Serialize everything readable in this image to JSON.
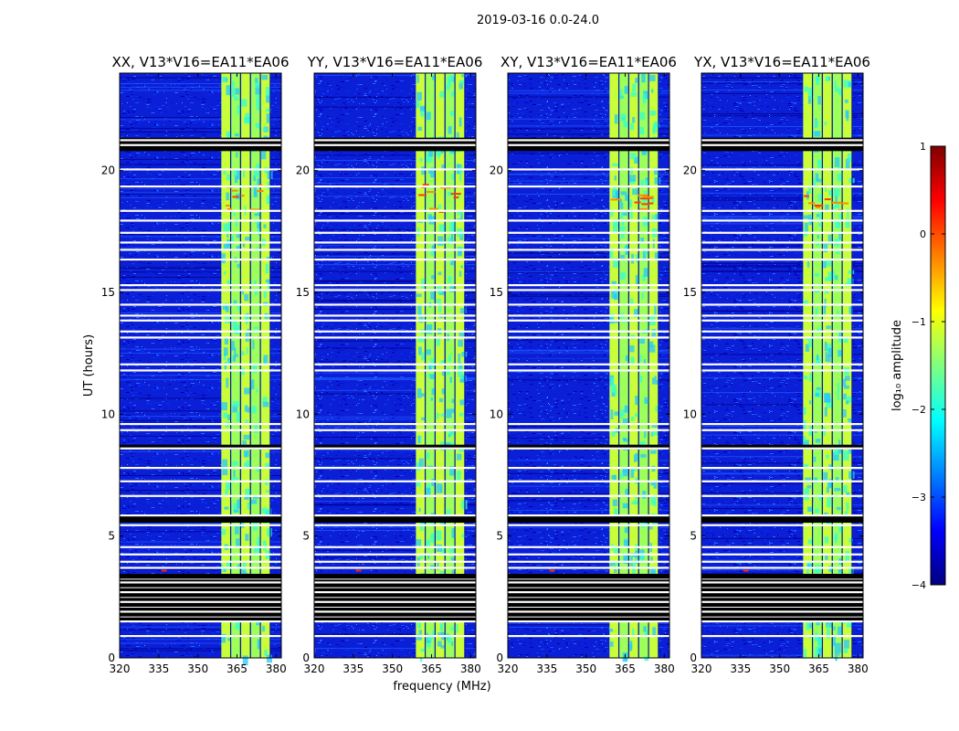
{
  "chart_data": {
    "type": "heatmap",
    "suptitle": "2019-03-16 0.0-24.0",
    "xlabel": "frequency (MHz)",
    "ylabel": "UT (hours)",
    "xlim": [
      320,
      382
    ],
    "ylim": [
      0,
      24
    ],
    "xticks": [
      320,
      335,
      350,
      365,
      380
    ],
    "xtick_labels": [
      "320",
      "335",
      "350",
      "365",
      "380"
    ],
    "yticks": [
      0,
      5,
      10,
      15,
      20
    ],
    "ytick_labels": [
      "0",
      "5",
      "10",
      "15",
      "20"
    ],
    "signal_band_mhz": [
      359,
      378
    ],
    "blank_rows_ut": [
      0.9,
      1.5,
      1.9,
      2.3,
      2.7,
      3.1,
      3.7,
      3.95,
      4.25,
      4.55,
      5.45,
      5.85,
      6.65,
      7.25,
      7.8,
      8.6,
      9.35,
      9.6,
      11.8,
      12.05,
      13.15,
      13.4,
      13.85,
      14.05,
      14.5,
      15.1,
      15.3,
      16.35,
      16.75,
      17.05,
      17.45,
      17.95,
      18.35,
      19.35,
      20.05,
      21.05,
      21.25
    ],
    "flagged_bands_ut": [
      [
        1.5,
        3.45
      ],
      [
        5.55,
        5.85
      ],
      [
        8.55,
        8.75
      ],
      [
        20.8,
        21.35
      ]
    ],
    "panels": [
      {
        "title": "XX, V13*V16=EA11*EA06",
        "polarization": "XX"
      },
      {
        "title": "YY, V13*V16=EA11*EA06",
        "polarization": "YY"
      },
      {
        "title": "XY, V13*V16=EA11*EA06",
        "polarization": "XY"
      },
      {
        "title": "YX, V13*V16=EA11*EA06",
        "polarization": "YX"
      }
    ],
    "colorbar": {
      "label": "log₁₀ amplitude",
      "range": [
        -4,
        1
      ],
      "ticks": [
        1,
        0,
        -1,
        -2,
        -3,
        -4
      ],
      "tick_labels": [
        "1",
        "0",
        "−1",
        "−2",
        "−3",
        "−4"
      ],
      "colormap": "jet",
      "colors": [
        "#00007f",
        "#0000ff",
        "#007fff",
        "#00ffff",
        "#7fff7f",
        "#ffff00",
        "#ff7f00",
        "#ff0000",
        "#7f0000"
      ]
    }
  }
}
